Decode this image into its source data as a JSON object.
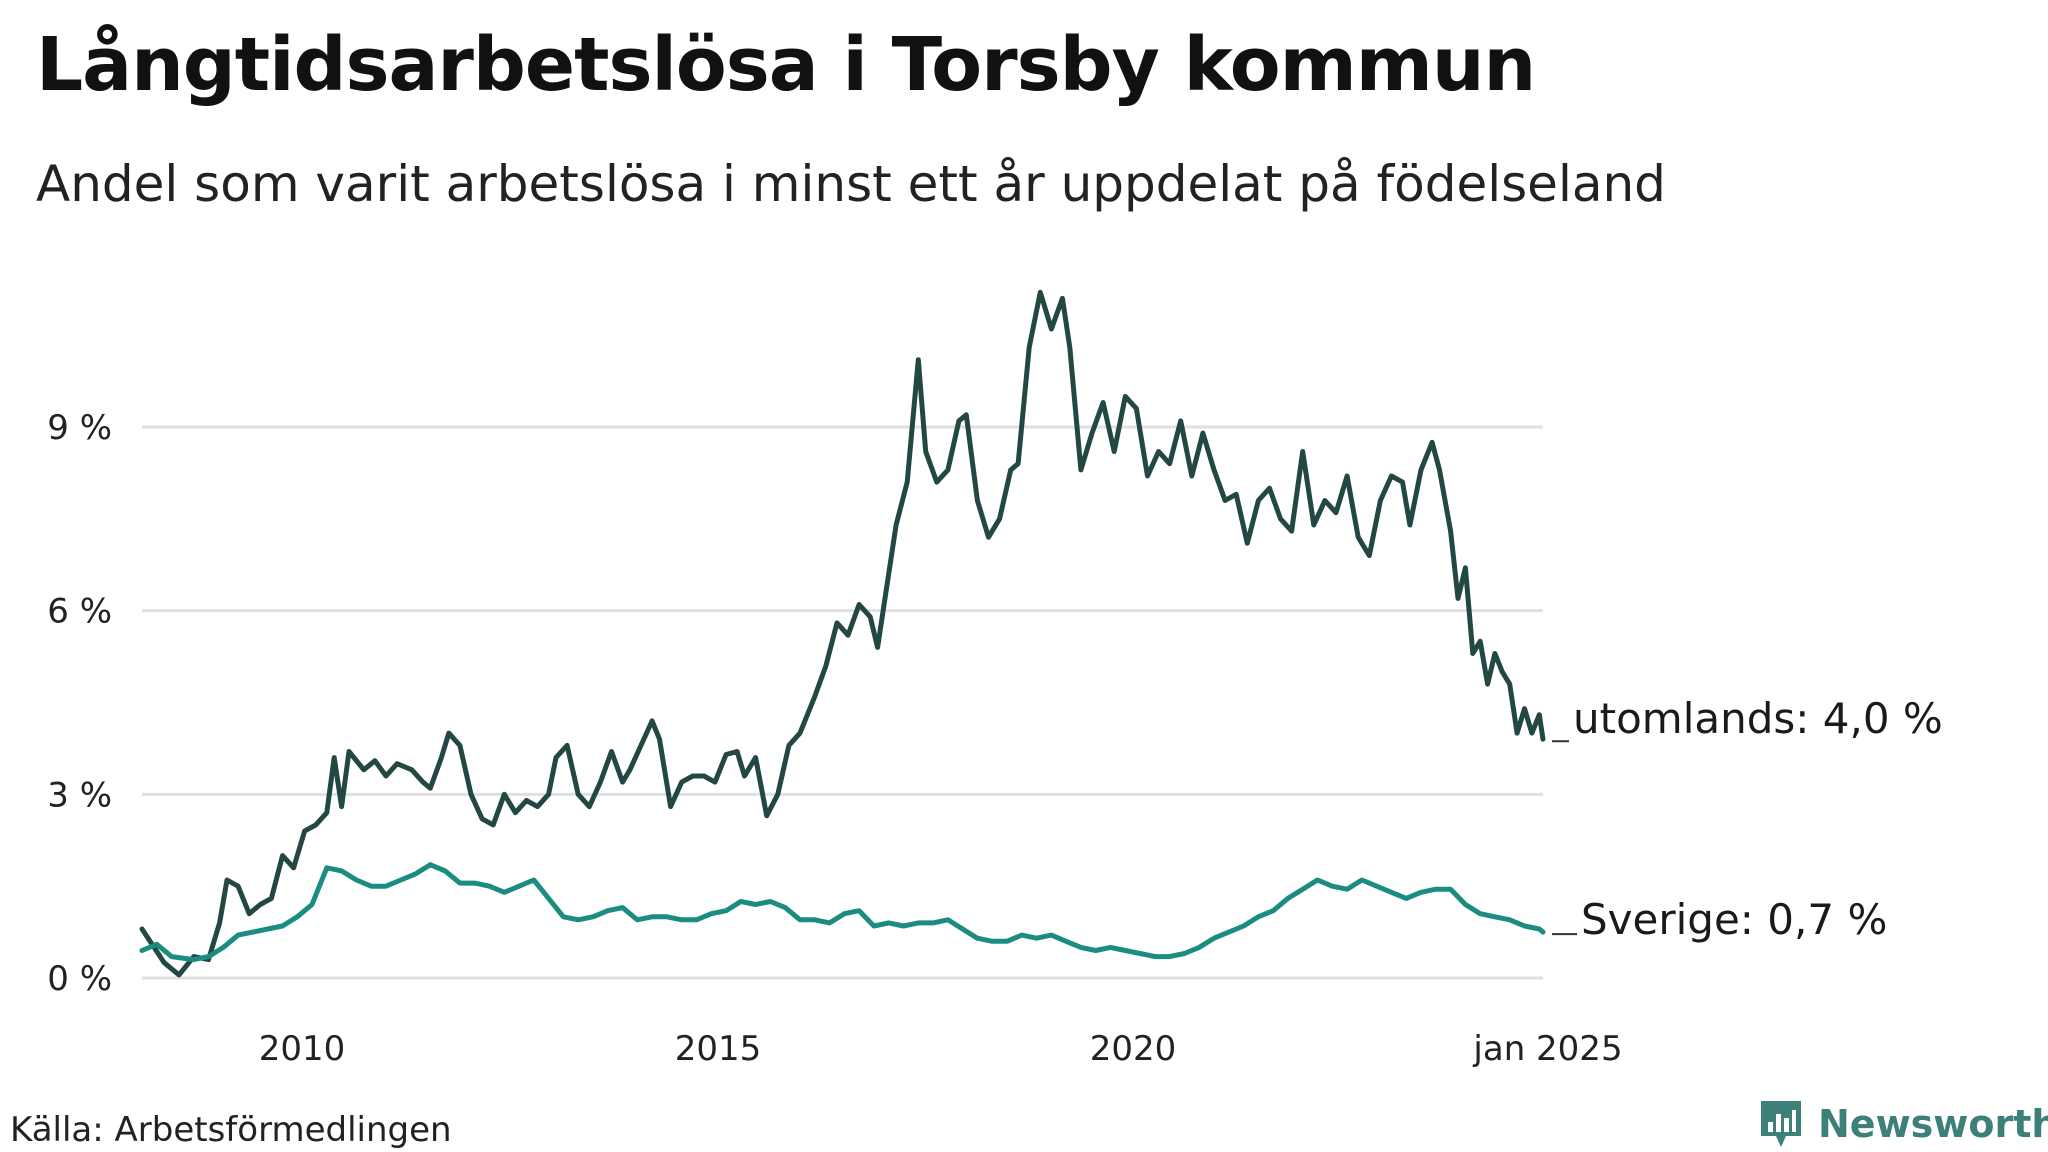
{
  "title": "Långtidsarbetslösa i Torsby kommun",
  "subtitle": "Andel som varit arbetslösa i minst ett år uppdelat på födelseland",
  "source": "Källa: Arbetsförmedlingen",
  "brand": {
    "name": "Newsworthy",
    "icon": "newsworthy-logo-icon",
    "color": "#3d7f79"
  },
  "chart_data": {
    "type": "line",
    "title": "Långtidsarbetslösa i Torsby kommun",
    "xlabel": "",
    "ylabel": "",
    "xlim": [
      2008.0,
      2025.0
    ],
    "ylim": [
      0,
      11.3
    ],
    "grid": true,
    "y_ticks": [
      {
        "value": 0,
        "label": "0 %"
      },
      {
        "value": 3,
        "label": "3 %"
      },
      {
        "value": 6,
        "label": "6 %"
      },
      {
        "value": 9,
        "label": "9 %"
      }
    ],
    "x_ticks": [
      {
        "value": 2010,
        "label": "2010"
      },
      {
        "value": 2015,
        "label": "2015"
      },
      {
        "value": 2020,
        "label": "2020"
      },
      {
        "value": 2025,
        "label": "jan 2025"
      }
    ],
    "series": [
      {
        "name": "utomlands",
        "label": "utomlands: 4,0 %",
        "color": "#234843",
        "points": [
          [
            2008.0,
            0.8
          ],
          [
            2008.3,
            0.25
          ],
          [
            2008.5,
            0.05
          ],
          [
            2008.7,
            0.35
          ],
          [
            2008.9,
            0.3
          ],
          [
            2009.05,
            0.9
          ],
          [
            2009.15,
            1.6
          ],
          [
            2009.3,
            1.5
          ],
          [
            2009.45,
            1.05
          ],
          [
            2009.6,
            1.2
          ],
          [
            2009.75,
            1.3
          ],
          [
            2009.9,
            2.0
          ],
          [
            2010.05,
            1.8
          ],
          [
            2010.2,
            2.4
          ],
          [
            2010.35,
            2.5
          ],
          [
            2010.5,
            2.7
          ],
          [
            2010.6,
            3.6
          ],
          [
            2010.7,
            2.8
          ],
          [
            2010.8,
            3.7
          ],
          [
            2011.0,
            3.4
          ],
          [
            2011.15,
            3.55
          ],
          [
            2011.3,
            3.3
          ],
          [
            2011.45,
            3.5
          ],
          [
            2011.65,
            3.4
          ],
          [
            2011.8,
            3.2
          ],
          [
            2011.9,
            3.1
          ],
          [
            2012.05,
            3.6
          ],
          [
            2012.15,
            4.0
          ],
          [
            2012.3,
            3.8
          ],
          [
            2012.45,
            3.0
          ],
          [
            2012.6,
            2.6
          ],
          [
            2012.75,
            2.5
          ],
          [
            2012.9,
            3.0
          ],
          [
            2013.05,
            2.7
          ],
          [
            2013.2,
            2.9
          ],
          [
            2013.35,
            2.8
          ],
          [
            2013.5,
            3.0
          ],
          [
            2013.6,
            3.6
          ],
          [
            2013.75,
            3.8
          ],
          [
            2013.9,
            3.0
          ],
          [
            2014.05,
            2.8
          ],
          [
            2014.2,
            3.2
          ],
          [
            2014.35,
            3.7
          ],
          [
            2014.5,
            3.2
          ],
          [
            2014.6,
            3.4
          ],
          [
            2014.75,
            3.8
          ],
          [
            2014.9,
            4.2
          ],
          [
            2015.0,
            3.9
          ],
          [
            2015.15,
            2.8
          ],
          [
            2015.3,
            3.2
          ],
          [
            2015.45,
            3.3
          ],
          [
            2015.6,
            3.3
          ],
          [
            2015.75,
            3.2
          ],
          [
            2015.9,
            3.65
          ],
          [
            2016.05,
            3.7
          ],
          [
            2016.15,
            3.3
          ],
          [
            2016.3,
            3.6
          ],
          [
            2016.45,
            2.65
          ],
          [
            2016.6,
            3.0
          ],
          [
            2016.75,
            3.8
          ],
          [
            2016.9,
            4.0
          ],
          [
            2017.1,
            4.6
          ],
          [
            2017.25,
            5.1
          ],
          [
            2017.4,
            5.8
          ],
          [
            2017.55,
            5.6
          ],
          [
            2017.7,
            6.1
          ],
          [
            2017.85,
            5.9
          ],
          [
            2017.95,
            5.4
          ],
          [
            2018.1,
            6.6
          ],
          [
            2018.2,
            7.4
          ],
          [
            2018.35,
            8.1
          ],
          [
            2018.5,
            10.1
          ],
          [
            2018.6,
            8.6
          ],
          [
            2018.75,
            8.1
          ],
          [
            2018.9,
            8.3
          ],
          [
            2019.05,
            9.1
          ],
          [
            2019.15,
            9.2
          ],
          [
            2019.3,
            7.8
          ],
          [
            2019.45,
            7.2
          ],
          [
            2019.6,
            7.5
          ],
          [
            2019.75,
            8.3
          ],
          [
            2019.85,
            8.4
          ],
          [
            2020.0,
            10.3
          ],
          [
            2020.15,
            11.2
          ],
          [
            2020.3,
            10.6
          ],
          [
            2020.45,
            11.1
          ],
          [
            2020.55,
            10.3
          ],
          [
            2020.7,
            8.3
          ],
          [
            2020.85,
            8.9
          ],
          [
            2021.0,
            9.4
          ],
          [
            2021.15,
            8.6
          ],
          [
            2021.3,
            9.5
          ],
          [
            2021.45,
            9.3
          ],
          [
            2021.6,
            8.2
          ],
          [
            2021.75,
            8.6
          ],
          [
            2021.9,
            8.4
          ],
          [
            2022.05,
            9.1
          ],
          [
            2022.2,
            8.2
          ],
          [
            2022.35,
            8.9
          ],
          [
            2022.5,
            8.3
          ],
          [
            2022.65,
            7.8
          ],
          [
            2022.8,
            7.9
          ],
          [
            2022.95,
            7.1
          ],
          [
            2023.1,
            7.8
          ],
          [
            2023.25,
            8.0
          ],
          [
            2023.4,
            7.5
          ],
          [
            2023.55,
            7.3
          ],
          [
            2023.7,
            8.6
          ],
          [
            2023.85,
            7.4
          ],
          [
            2024.0,
            7.8
          ],
          [
            2024.15,
            7.6
          ],
          [
            2024.3,
            8.2
          ],
          [
            2024.45,
            7.2
          ],
          [
            2024.6,
            6.9
          ],
          [
            2024.75,
            7.8
          ],
          [
            2024.9,
            8.2
          ],
          [
            2025.05,
            8.1
          ],
          [
            2025.15,
            7.4
          ],
          [
            2025.3,
            8.3
          ],
          [
            2025.45,
            8.75
          ],
          [
            2025.55,
            8.3
          ],
          [
            2025.7,
            7.3
          ],
          [
            2025.8,
            6.2
          ],
          [
            2025.9,
            6.7
          ],
          [
            2026.0,
            5.3
          ],
          [
            2026.1,
            5.5
          ],
          [
            2026.2,
            4.8
          ],
          [
            2026.3,
            5.3
          ],
          [
            2026.4,
            5.0
          ],
          [
            2026.5,
            4.8
          ],
          [
            2026.6,
            4.0
          ],
          [
            2026.7,
            4.4
          ],
          [
            2026.8,
            4.0
          ],
          [
            2026.9,
            4.3
          ],
          [
            2026.95,
            3.9
          ]
        ]
      },
      {
        "name": "Sverige",
        "label": "Sverige: 0,7 %",
        "color": "#1a8c80",
        "points": [
          [
            2008.0,
            0.45
          ],
          [
            2008.2,
            0.55
          ],
          [
            2008.4,
            0.35
          ],
          [
            2008.7,
            0.3
          ],
          [
            2008.9,
            0.35
          ],
          [
            2009.1,
            0.5
          ],
          [
            2009.3,
            0.7
          ],
          [
            2009.5,
            0.75
          ],
          [
            2009.7,
            0.8
          ],
          [
            2009.9,
            0.85
          ],
          [
            2010.1,
            1.0
          ],
          [
            2010.3,
            1.2
          ],
          [
            2010.5,
            1.8
          ],
          [
            2010.7,
            1.75
          ],
          [
            2010.9,
            1.6
          ],
          [
            2011.1,
            1.5
          ],
          [
            2011.3,
            1.5
          ],
          [
            2011.5,
            1.6
          ],
          [
            2011.7,
            1.7
          ],
          [
            2011.9,
            1.85
          ],
          [
            2012.1,
            1.75
          ],
          [
            2012.3,
            1.55
          ],
          [
            2012.5,
            1.55
          ],
          [
            2012.7,
            1.5
          ],
          [
            2012.9,
            1.4
          ],
          [
            2013.1,
            1.5
          ],
          [
            2013.3,
            1.6
          ],
          [
            2013.5,
            1.3
          ],
          [
            2013.7,
            1.0
          ],
          [
            2013.9,
            0.95
          ],
          [
            2014.1,
            1.0
          ],
          [
            2014.3,
            1.1
          ],
          [
            2014.5,
            1.15
          ],
          [
            2014.7,
            0.95
          ],
          [
            2014.9,
            1.0
          ],
          [
            2015.1,
            1.0
          ],
          [
            2015.3,
            0.95
          ],
          [
            2015.5,
            0.95
          ],
          [
            2015.7,
            1.05
          ],
          [
            2015.9,
            1.1
          ],
          [
            2016.1,
            1.25
          ],
          [
            2016.3,
            1.2
          ],
          [
            2016.5,
            1.25
          ],
          [
            2016.7,
            1.15
          ],
          [
            2016.9,
            0.95
          ],
          [
            2017.1,
            0.95
          ],
          [
            2017.3,
            0.9
          ],
          [
            2017.5,
            1.05
          ],
          [
            2017.7,
            1.1
          ],
          [
            2017.9,
            0.85
          ],
          [
            2018.1,
            0.9
          ],
          [
            2018.3,
            0.85
          ],
          [
            2018.5,
            0.9
          ],
          [
            2018.7,
            0.9
          ],
          [
            2018.9,
            0.95
          ],
          [
            2019.1,
            0.8
          ],
          [
            2019.3,
            0.65
          ],
          [
            2019.5,
            0.6
          ],
          [
            2019.7,
            0.6
          ],
          [
            2019.9,
            0.7
          ],
          [
            2020.1,
            0.65
          ],
          [
            2020.3,
            0.7
          ],
          [
            2020.5,
            0.6
          ],
          [
            2020.7,
            0.5
          ],
          [
            2020.9,
            0.45
          ],
          [
            2021.1,
            0.5
          ],
          [
            2021.3,
            0.45
          ],
          [
            2021.5,
            0.4
          ],
          [
            2021.7,
            0.35
          ],
          [
            2021.9,
            0.35
          ],
          [
            2022.1,
            0.4
          ],
          [
            2022.3,
            0.5
          ],
          [
            2022.5,
            0.65
          ],
          [
            2022.7,
            0.75
          ],
          [
            2022.9,
            0.85
          ],
          [
            2023.1,
            1.0
          ],
          [
            2023.3,
            1.1
          ],
          [
            2023.5,
            1.3
          ],
          [
            2023.7,
            1.45
          ],
          [
            2023.9,
            1.6
          ],
          [
            2024.1,
            1.5
          ],
          [
            2024.3,
            1.45
          ],
          [
            2024.5,
            1.6
          ],
          [
            2024.7,
            1.5
          ],
          [
            2024.9,
            1.4
          ],
          [
            2025.1,
            1.3
          ],
          [
            2025.3,
            1.4
          ],
          [
            2025.5,
            1.45
          ],
          [
            2025.7,
            1.45
          ],
          [
            2025.9,
            1.2
          ],
          [
            2026.1,
            1.05
          ],
          [
            2026.3,
            1.0
          ],
          [
            2026.5,
            0.95
          ],
          [
            2026.7,
            0.85
          ],
          [
            2026.9,
            0.8
          ],
          [
            2026.95,
            0.75
          ]
        ]
      }
    ]
  }
}
